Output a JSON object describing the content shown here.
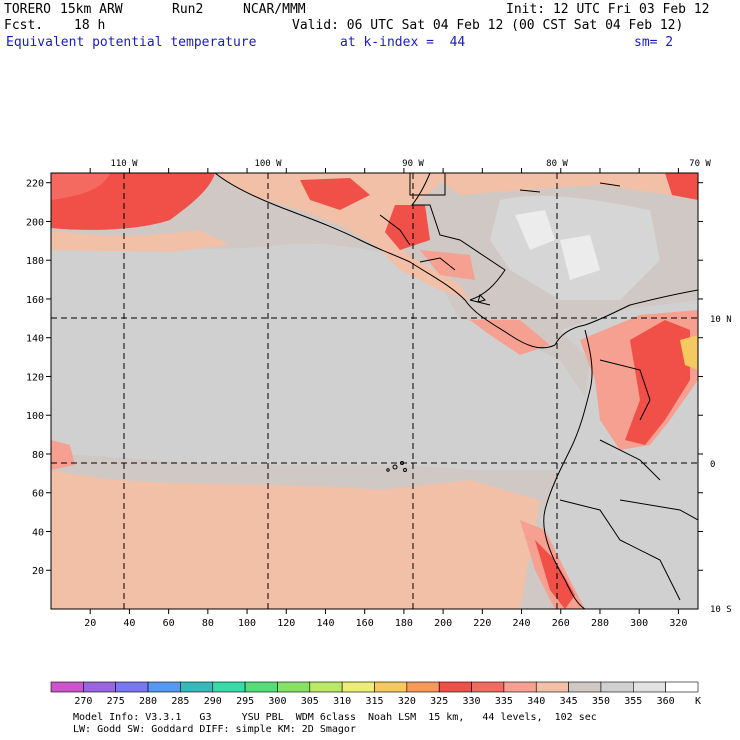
{
  "header": {
    "model": "TORERO",
    "resolution": "15km ARW",
    "run": "Run2",
    "org": "NCAR/MMM",
    "init": "Init: 12 UTC Fri 03 Feb 12",
    "fcst_label": "Fcst.",
    "fcst_hours": "18 h",
    "valid": "Valid: 06 UTC Sat 04 Feb 12 (00 CST Sat 04 Feb 12)",
    "field": "Equivalent potential temperature",
    "level": "at k-index =  44",
    "smoothing": "sm= 2"
  },
  "map": {
    "lon_labels": [
      "110 W",
      "100 W",
      "90 W",
      "80 W",
      "70 W"
    ],
    "lat_labels": [
      "10 N",
      "0",
      "10 S"
    ],
    "x_ticks": [
      "20",
      "40",
      "60",
      "80",
      "100",
      "120",
      "140",
      "160",
      "180",
      "200",
      "220",
      "240",
      "260",
      "280",
      "300",
      "320"
    ],
    "y_ticks": [
      "220",
      "200",
      "180",
      "160",
      "140",
      "120",
      "100",
      "80",
      "60",
      "40",
      "20"
    ]
  },
  "colorbar": {
    "unit": "K",
    "levels": [
      "270",
      "275",
      "280",
      "285",
      "290",
      "295",
      "300",
      "305",
      "310",
      "315",
      "320",
      "325",
      "330",
      "335",
      "340",
      "345",
      "350",
      "355",
      "360"
    ],
    "colors": [
      "#cc55cc",
      "#9966dd",
      "#7777ee",
      "#5599ee",
      "#33bbbb",
      "#33ddaa",
      "#55dd77",
      "#88e066",
      "#bbe866",
      "#eeee77",
      "#f5c860",
      "#f59a5a",
      "#f05048",
      "#f56a60",
      "#f5a090",
      "#f2c0a6",
      "#cfc8c4",
      "#d0d0d0",
      "#e2e2e2",
      "#ffffff"
    ]
  },
  "footer": {
    "line1": "Model Info: V3.3.1   G3     YSU PBL  WDM 6class  Noah LSM  15 km,   44 levels,  102 sec",
    "line2": "LW: Godd SW: Goddard DIFF: simple KM: 2D Smagor"
  }
}
